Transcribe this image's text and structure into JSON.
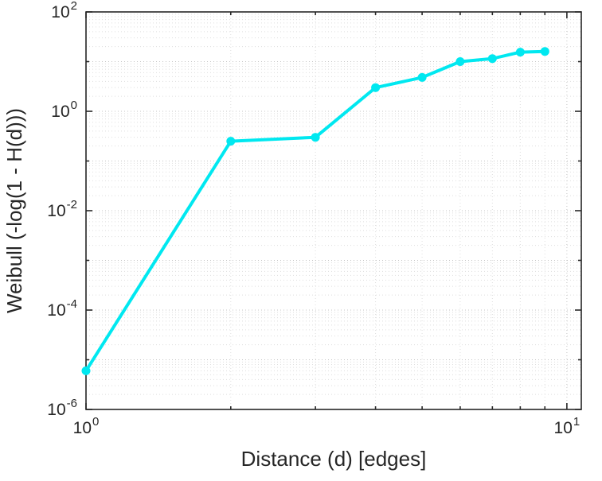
{
  "figure": {
    "background": "#ffffff"
  },
  "chart_data": {
    "type": "line",
    "title": "",
    "xlabel": "Distance (d) [edges]",
    "ylabel": "Weibull (-log(1 - H(d)))",
    "xscale": "log",
    "yscale": "log",
    "xlim": [
      1,
      10.715
    ],
    "ylim": [
      1e-06,
      100
    ],
    "x": [
      1,
      2,
      3,
      4,
      5,
      6,
      7,
      8,
      9
    ],
    "y": [
      6e-06,
      0.25,
      0.3,
      3.0,
      4.8,
      10.0,
      11.5,
      15.5,
      16.0
    ],
    "x_tick_exponents": [
      0,
      1
    ],
    "y_tick_exponents": [
      -6,
      -4,
      -2,
      0,
      2
    ],
    "line_color": "#00e8f0",
    "marker": "circle",
    "grid": "on",
    "minor_grid": "on",
    "axis_color": "#262626",
    "major_grid_color": "#c4c4c4",
    "minor_grid_color": "#dedede",
    "legend": "none"
  }
}
